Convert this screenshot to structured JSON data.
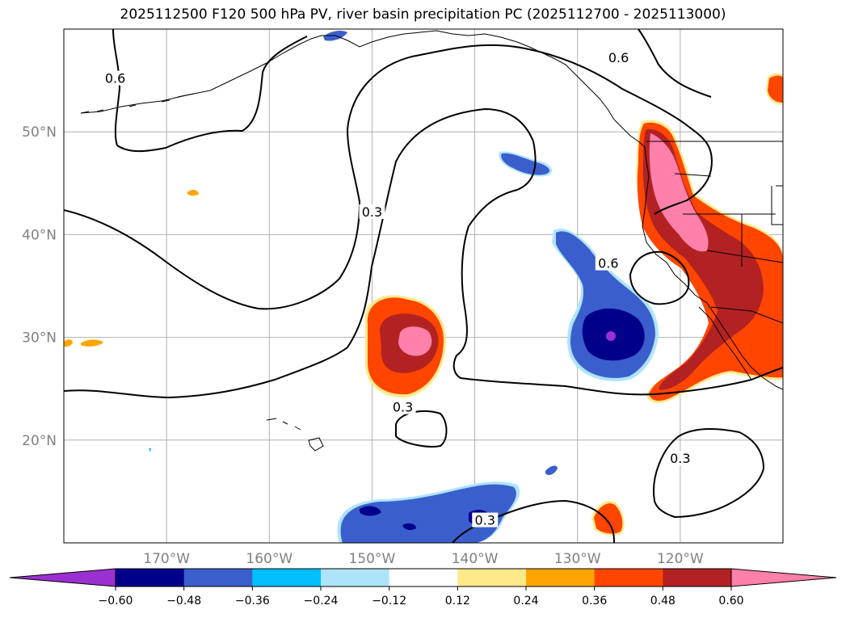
{
  "chart_data": {
    "type": "contour-map",
    "title": "2025112500 F120 500 hPa PV, river basin precipitation PC (2025112700 - 2025113000)",
    "x_axis": {
      "ticks": [
        -170,
        -160,
        -150,
        -140,
        -130,
        -120
      ],
      "tick_labels": [
        "170°W",
        "160°W",
        "150°W",
        "140°W",
        "130°W",
        "120°W"
      ],
      "range": [
        -180,
        -110
      ]
    },
    "y_axis": {
      "ticks": [
        20,
        30,
        40,
        50
      ],
      "tick_labels": [
        "20°N",
        "30°N",
        "40°N",
        "50°N"
      ],
      "range": [
        10,
        60
      ]
    },
    "grid": true,
    "colorbar": {
      "orientation": "horizontal",
      "extend": "both",
      "levels": [
        -0.6,
        -0.48,
        -0.36,
        -0.24,
        -0.12,
        0.12,
        0.24,
        0.36,
        0.48,
        0.6
      ],
      "tick_labels": [
        "−0.60",
        "−0.48",
        "−0.36",
        "−0.24",
        "−0.12",
        "0.12",
        "0.24",
        "0.36",
        "0.48",
        "0.60"
      ],
      "colors": [
        "#9b30d0",
        "#00008b",
        "#3a5fcd",
        "#00bfff",
        "#aee4fa",
        "#ffffff",
        "#ffe98a",
        "#ffa500",
        "#ff4500",
        "#b22222",
        "#ff80aa"
      ]
    },
    "pv_contours": {
      "levels": [
        0.3,
        0.6
      ],
      "labels": [
        {
          "text": "0.6",
          "lon": -175,
          "lat": 55
        },
        {
          "text": "0.3",
          "lon": -150,
          "lat": 42
        },
        {
          "text": "0.3",
          "lon": -147,
          "lat": 23
        },
        {
          "text": "0.6",
          "lon": -126,
          "lat": 57
        },
        {
          "text": "0.6",
          "lon": -127,
          "lat": 37
        },
        {
          "text": "0.3",
          "lon": -120,
          "lat": 18
        },
        {
          "text": "0.3",
          "lon": -139,
          "lat": 12
        }
      ]
    },
    "precip_pc_regions": [
      {
        "name": "hawaii-northeast-positive",
        "center_lon": -145,
        "center_lat": 30,
        "peak": 0.6
      },
      {
        "name": "us-west-coast-positive",
        "center_lon": -120,
        "center_lat": 40,
        "peak": 0.6
      },
      {
        "name": "mexico-positive",
        "center_lon": -116,
        "center_lat": 28,
        "peak": 0.48
      },
      {
        "name": "east-pacific-negative",
        "center_lon": -127,
        "center_lat": 31,
        "peak": -0.6
      },
      {
        "name": "gulf-of-alaska-negative",
        "center_lon": -132,
        "center_lat": 47,
        "peak": -0.36
      },
      {
        "name": "tropical-negative",
        "center_lon": -142,
        "center_lat": 12,
        "peak": -0.48
      },
      {
        "name": "small-positive-14n",
        "center_lon": -125,
        "center_lat": 13,
        "peak": 0.36
      }
    ]
  }
}
